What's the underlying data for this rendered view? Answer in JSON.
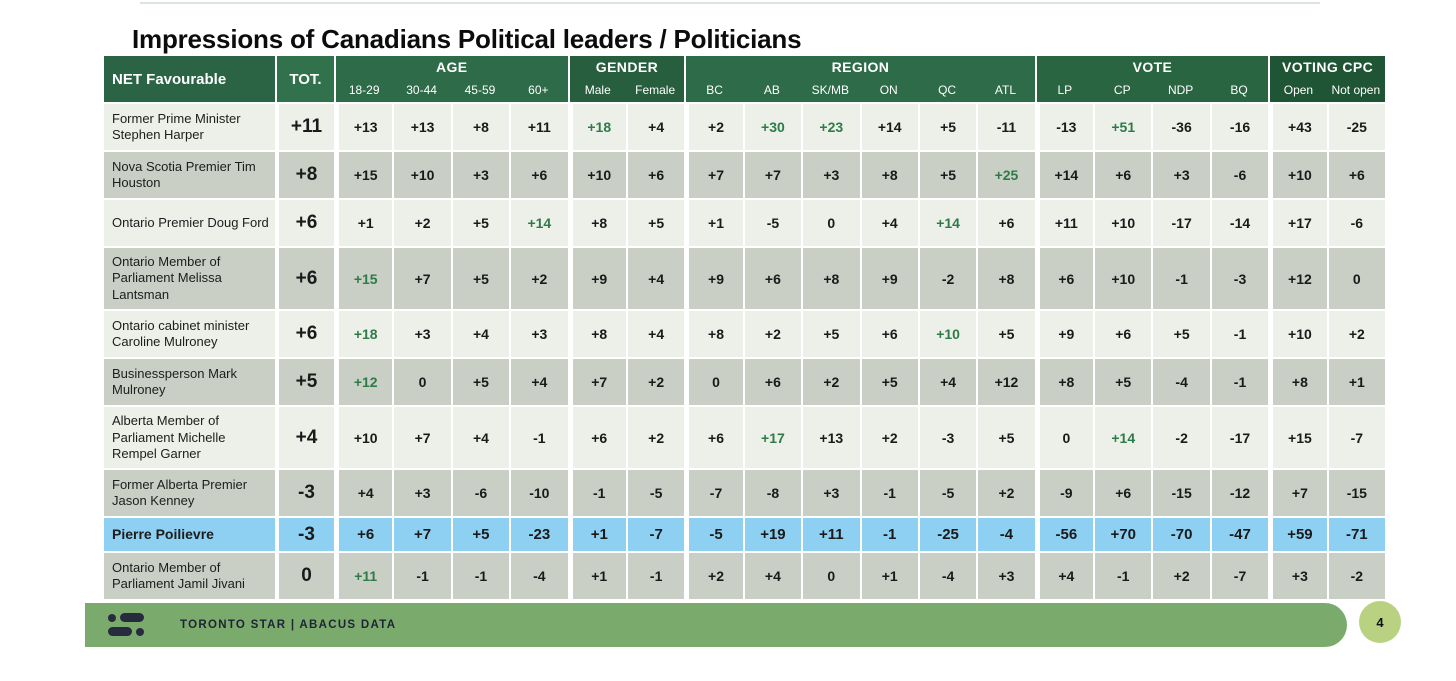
{
  "page": {
    "title": "Impressions of Canadians Political leaders / Politicians"
  },
  "colors": {
    "header_net": "#2b6345",
    "header_tot": "#31724d",
    "accent_green_value": "#2e7b49",
    "highlight_blue": "#8dd0f2",
    "row_light": "#edefe9",
    "row_dark": "#c9cfc4",
    "footer_green": "#7aab6d",
    "badge_green": "#b9d282",
    "logo_navy": "#262b3e"
  },
  "table": {
    "corner_label": "NET Favourable",
    "total_label": "TOT.",
    "groups": [
      {
        "label": "AGE",
        "color": "#2e6b48",
        "cols": [
          "18-29",
          "30-44",
          "45-59",
          "60+"
        ]
      },
      {
        "label": "GENDER",
        "color": "#265e3e",
        "cols": [
          "Male",
          "Female"
        ]
      },
      {
        "label": "REGION",
        "color": "#2e6b48",
        "cols": [
          "BC",
          "AB",
          "SK/MB",
          "ON",
          "QC",
          "ATL"
        ]
      },
      {
        "label": "VOTE",
        "color": "#2a6542",
        "cols": [
          "LP",
          "CP",
          "NDP",
          "BQ"
        ]
      },
      {
        "label": "VOTING CPC",
        "color": "#1f5434",
        "cols": [
          "Open",
          "Not open"
        ]
      }
    ],
    "rows": [
      {
        "name": "Former Prime Minister Stephen Harper",
        "tot": "+11",
        "values": [
          "+13",
          "+13",
          "+8",
          "+11",
          "+18",
          "+4",
          "+2",
          "+30",
          "+23",
          "+14",
          "+5",
          "-11",
          "-13",
          "+51",
          "-36",
          "-16",
          "+43",
          "-25"
        ],
        "green": [
          4,
          7,
          8,
          13
        ],
        "highlight": false
      },
      {
        "name": "Nova Scotia Premier Tim Houston",
        "tot": "+8",
        "values": [
          "+15",
          "+10",
          "+3",
          "+6",
          "+10",
          "+6",
          "+7",
          "+7",
          "+3",
          "+8",
          "+5",
          "+25",
          "+14",
          "+6",
          "+3",
          "-6",
          "+10",
          "+6"
        ],
        "green": [
          11
        ],
        "highlight": false
      },
      {
        "name": "Ontario Premier Doug Ford",
        "tot": "+6",
        "values": [
          "+1",
          "+2",
          "+5",
          "+14",
          "+8",
          "+5",
          "+1",
          "-5",
          "0",
          "+4",
          "+14",
          "+6",
          "+11",
          "+10",
          "-17",
          "-14",
          "+17",
          "-6"
        ],
        "green": [
          3,
          10
        ],
        "highlight": false
      },
      {
        "name": "Ontario Member of Parliament Melissa Lantsman",
        "tot": "+6",
        "values": [
          "+15",
          "+7",
          "+5",
          "+2",
          "+9",
          "+4",
          "+9",
          "+6",
          "+8",
          "+9",
          "-2",
          "+8",
          "+6",
          "+10",
          "-1",
          "-3",
          "+12",
          "0"
        ],
        "green": [
          0
        ],
        "highlight": false
      },
      {
        "name": "Ontario cabinet minister Caroline Mulroney",
        "tot": "+6",
        "values": [
          "+18",
          "+3",
          "+4",
          "+3",
          "+8",
          "+4",
          "+8",
          "+2",
          "+5",
          "+6",
          "+10",
          "+5",
          "+9",
          "+6",
          "+5",
          "-1",
          "+10",
          "+2"
        ],
        "green": [
          0,
          10
        ],
        "highlight": false
      },
      {
        "name": "Businessperson Mark Mulroney",
        "tot": "+5",
        "values": [
          "+12",
          "0",
          "+5",
          "+4",
          "+7",
          "+2",
          "0",
          "+6",
          "+2",
          "+5",
          "+4",
          "+12",
          "+8",
          "+5",
          "-4",
          "-1",
          "+8",
          "+1"
        ],
        "green": [
          0
        ],
        "highlight": false
      },
      {
        "name": "Alberta Member of Parliament Michelle Rempel Garner",
        "tot": "+4",
        "values": [
          "+10",
          "+7",
          "+4",
          "-1",
          "+6",
          "+2",
          "+6",
          "+17",
          "+13",
          "+2",
          "-3",
          "+5",
          "0",
          "+14",
          "-2",
          "-17",
          "+15",
          "-7"
        ],
        "green": [
          7,
          13
        ],
        "highlight": false
      },
      {
        "name": "Former Alberta Premier Jason Kenney",
        "tot": "-3",
        "values": [
          "+4",
          "+3",
          "-6",
          "-10",
          "-1",
          "-5",
          "-7",
          "-8",
          "+3",
          "-1",
          "-5",
          "+2",
          "-9",
          "+6",
          "-15",
          "-12",
          "+7",
          "-15"
        ],
        "green": [],
        "highlight": false
      },
      {
        "name": "Pierre Poilievre",
        "tot": "-3",
        "values": [
          "+6",
          "+7",
          "+5",
          "-23",
          "+1",
          "-7",
          "-5",
          "+19",
          "+11",
          "-1",
          "-25",
          "-4",
          "-56",
          "+70",
          "-70",
          "-47",
          "+59",
          "-71"
        ],
        "green": [],
        "highlight": true
      },
      {
        "name": "Ontario Member of Parliament Jamil Jivani",
        "tot": "0",
        "values": [
          "+11",
          "-1",
          "-1",
          "-4",
          "+1",
          "-1",
          "+2",
          "+4",
          "0",
          "+1",
          "-4",
          "+3",
          "+4",
          "-1",
          "+2",
          "-7",
          "+3",
          "-2"
        ],
        "green": [
          0
        ],
        "highlight": false
      }
    ]
  },
  "footer": {
    "source": "TORONTO STAR  |  ABACUS DATA",
    "page_number": "4"
  }
}
